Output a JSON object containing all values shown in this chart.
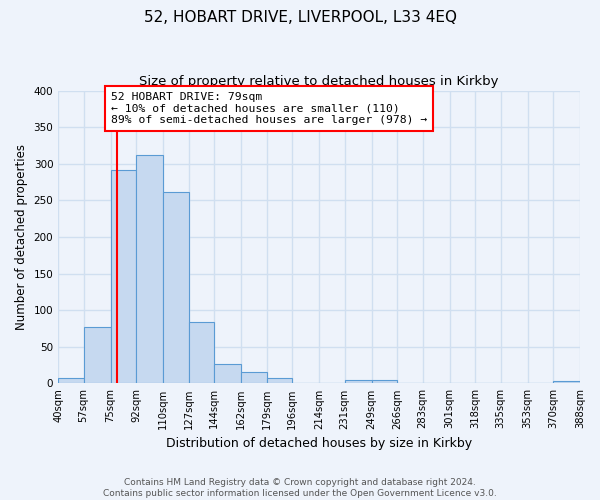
{
  "title": "52, HOBART DRIVE, LIVERPOOL, L33 4EQ",
  "subtitle": "Size of property relative to detached houses in Kirkby",
  "xlabel": "Distribution of detached houses by size in Kirkby",
  "ylabel": "Number of detached properties",
  "bar_edges": [
    40,
    57,
    75,
    92,
    110,
    127,
    144,
    162,
    179,
    196,
    214,
    231,
    249,
    266,
    283,
    301,
    318,
    335,
    353,
    370,
    388
  ],
  "bar_heights": [
    8,
    77,
    291,
    312,
    262,
    84,
    27,
    15,
    7,
    0,
    0,
    5,
    5,
    0,
    0,
    0,
    0,
    0,
    0,
    3
  ],
  "tick_labels": [
    "40sqm",
    "57sqm",
    "75sqm",
    "92sqm",
    "110sqm",
    "127sqm",
    "144sqm",
    "162sqm",
    "179sqm",
    "196sqm",
    "214sqm",
    "231sqm",
    "249sqm",
    "266sqm",
    "283sqm",
    "301sqm",
    "318sqm",
    "335sqm",
    "353sqm",
    "370sqm",
    "388sqm"
  ],
  "bar_color": "#c6d9f0",
  "bar_edge_color": "#5a9bd4",
  "vline_x": 79,
  "vline_color": "red",
  "annotation_line1": "52 HOBART DRIVE: 79sqm",
  "annotation_line2": "← 10% of detached houses are smaller (110)",
  "annotation_line3": "89% of semi-detached houses are larger (978) →",
  "annotation_box_color": "white",
  "annotation_box_edge": "red",
  "ylim": [
    0,
    400
  ],
  "yticks": [
    0,
    50,
    100,
    150,
    200,
    250,
    300,
    350,
    400
  ],
  "background_color": "#eef3fb",
  "grid_color": "#d0dff0",
  "footer_text": "Contains HM Land Registry data © Crown copyright and database right 2024.\nContains public sector information licensed under the Open Government Licence v3.0.",
  "title_fontsize": 11,
  "subtitle_fontsize": 9.5,
  "footer_fontsize": 6.5
}
